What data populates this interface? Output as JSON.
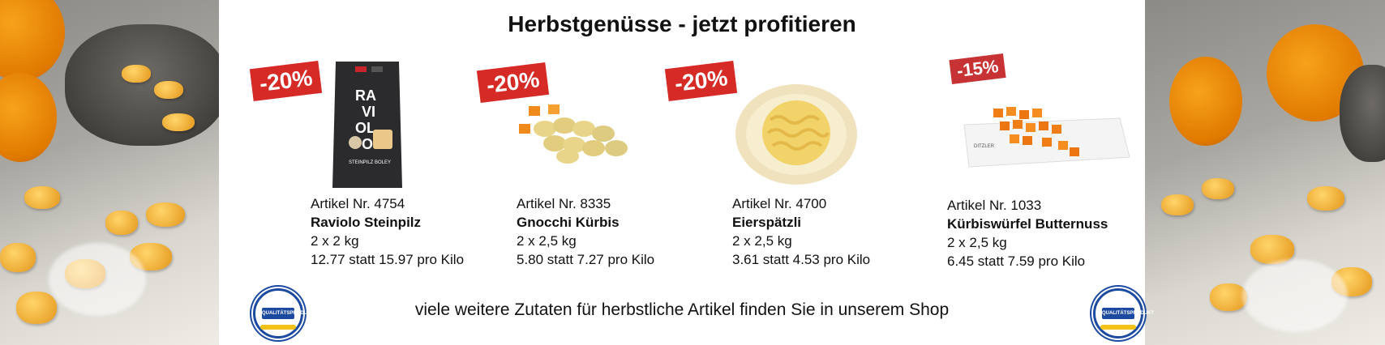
{
  "headline": "Herbstgenüsse - jetzt profitieren",
  "products": [
    {
      "badge": "-20%",
      "article": "Artikel Nr. 4754",
      "name": "Raviolo Steinpilz",
      "size": "2 x 2 kg",
      "price": "12.77 statt 15.97 pro Kilo",
      "bag_text": [
        "RA",
        "VI",
        "OL",
        "O"
      ],
      "bag_sub": "STEINPILZ BOLEY"
    },
    {
      "badge": "-20%",
      "article": "Artikel Nr. 8335",
      "name": "Gnocchi Kürbis",
      "size": "2 x 2,5 kg",
      "price": "5.80 statt 7.27 pro Kilo"
    },
    {
      "badge": "-20%",
      "article": "Artikel Nr. 4700",
      "name": "Eierspätzli",
      "size": "2 x 2,5 kg",
      "price": "3.61 statt 4.53 pro Kilo"
    },
    {
      "badge": "-15%",
      "article": "Artikel Nr. 1033",
      "name": "Kürbiswürfel Butternuss",
      "size": "2 x 2,5 kg",
      "price": "6.45 statt 7.59 pro Kilo",
      "plate_label": "DITZLER"
    }
  ],
  "footer": "viele weitere Zutaten für herbstliche Artikel finden Sie in unserem Shop",
  "seal_text": "QUALITÄTSPRODUKT",
  "colors": {
    "badge_red": "#d62a26",
    "badge_red_alt": "#c73234",
    "seal_blue": "#1c4aa0",
    "seal_yellow": "#f2c316"
  }
}
